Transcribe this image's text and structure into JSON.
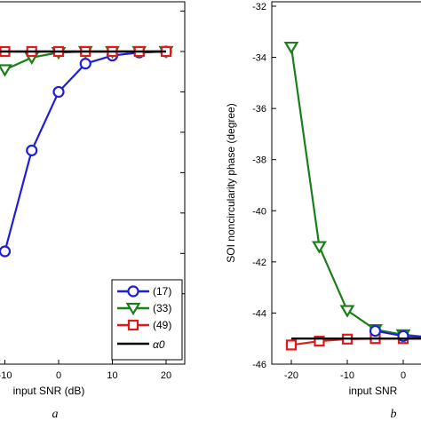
{
  "chart_data": [
    {
      "type": "line",
      "panel_label": "a",
      "xlabel": "input SNR (dB)",
      "ylabel": "",
      "xlim": [
        -14,
        25
      ],
      "ylim": [
        -46,
        -32
      ],
      "x_ticks": [
        -10,
        0,
        10,
        20
      ],
      "x_tick_labels": [
        "-10",
        "0",
        "10",
        "20"
      ],
      "y_ticks": [
        -46,
        -44,
        -42,
        -40,
        -38,
        -36,
        -34,
        -32
      ],
      "grid": false,
      "legend_placement": "bottom-right",
      "series": [
        {
          "name": "(17)",
          "color": "#1f1fd6",
          "marker": "circle",
          "x": [
            -10,
            -5,
            0,
            5,
            10,
            15,
            20
          ],
          "y": [
            -43.9,
            -38.9,
            -36.0,
            -34.6,
            -34.2,
            -34.05,
            -34.0
          ]
        },
        {
          "name": "(33)",
          "color": "#1a7f1a",
          "marker": "triangle-down",
          "x": [
            -10,
            -5,
            0,
            5,
            10,
            15,
            20
          ],
          "y": [
            -34.9,
            -34.3,
            -34.05,
            -34.0,
            -34.0,
            -34.0,
            -34.0
          ]
        },
        {
          "name": "(49)",
          "color": "#e01a1a",
          "marker": "square",
          "x": [
            -10,
            -5,
            0,
            5,
            10,
            15,
            20
          ],
          "y": [
            -34.0,
            -34.0,
            -34.0,
            -34.0,
            -34.0,
            -34.0,
            -34.0
          ]
        },
        {
          "name": "α0",
          "color": "#000000",
          "marker": "none",
          "x": [
            -14,
            20
          ],
          "y": [
            -34.0,
            -34.0
          ]
        }
      ]
    },
    {
      "type": "line",
      "panel_label": "b",
      "xlabel": "input SNR",
      "ylabel": "SOI noncircularity phase (degree)",
      "xlim": [
        -25,
        2
      ],
      "ylim": [
        -46,
        -32
      ],
      "x_ticks": [
        -20,
        -10,
        0
      ],
      "x_tick_labels": [
        "-20",
        "-10",
        "0"
      ],
      "y_ticks": [
        -46,
        -44,
        -42,
        -40,
        -38,
        -36,
        -34,
        -32
      ],
      "y_tick_labels": [
        "-46",
        "-44",
        "-42",
        "-40",
        "-38",
        "-36",
        "-34",
        "-32"
      ],
      "grid": false,
      "series": [
        {
          "name": "(33)",
          "color": "#1a7f1a",
          "marker": "triangle-down",
          "x": [
            -20,
            -15,
            -10,
            -5,
            0,
            5
          ],
          "y": [
            -33.6,
            -41.4,
            -43.9,
            -44.65,
            -44.85,
            -44.95
          ]
        },
        {
          "name": "(49)",
          "color": "#e01a1a",
          "marker": "square",
          "x": [
            -20,
            -15,
            -10,
            -5,
            0,
            5
          ],
          "y": [
            -45.25,
            -45.1,
            -45.02,
            -45.0,
            -45.0,
            -45.0
          ]
        },
        {
          "name": "(17)",
          "color": "#1f1fd6",
          "marker": "circle",
          "x": [
            -5,
            0,
            5
          ],
          "y": [
            -44.7,
            -44.9,
            -44.95
          ]
        },
        {
          "name": "α0",
          "color": "#000000",
          "marker": "none",
          "x": [
            -20,
            5
          ],
          "y": [
            -45.0,
            -45.0
          ]
        }
      ]
    }
  ]
}
